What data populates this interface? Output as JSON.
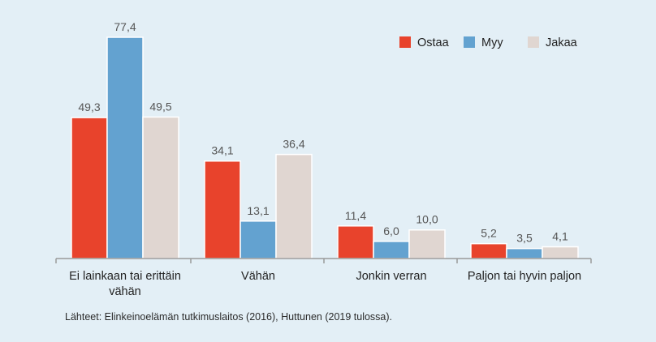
{
  "source_note": "Lähteet: Elinkeinoelämän tutkimuslaitos (2016), Huttunen (2019 tulossa).",
  "colors": {
    "background": "#e3eff6",
    "axis": "#9a9a9a",
    "value_label": "#555555",
    "tick_label": "#222222"
  },
  "chart_data": {
    "type": "bar",
    "categories": [
      [
        "Ei lainkaan tai erittäin",
        "vähän"
      ],
      [
        "Vähän"
      ],
      [
        "Jonkin verran"
      ],
      [
        "Paljon tai hyvin paljon"
      ]
    ],
    "series": [
      {
        "name": "Ostaa",
        "color": "#e8432c",
        "values": [
          49.3,
          34.1,
          11.4,
          5.2
        ],
        "labels": [
          "49,3",
          "34,1",
          "11,4",
          "5,2"
        ]
      },
      {
        "name": "Myy",
        "color": "#63a2d0",
        "values": [
          77.4,
          13.1,
          6.0,
          3.5
        ],
        "labels": [
          "77,4",
          "13,1",
          "6,0",
          "3,5"
        ]
      },
      {
        "name": "Jakaa",
        "color": "#e0d6d1",
        "values": [
          49.5,
          36.4,
          10.0,
          4.1
        ],
        "labels": [
          "49,5",
          "36,4",
          "10,0",
          "4,1"
        ]
      }
    ],
    "ylim": [
      0,
      77.4
    ],
    "grid": false,
    "legend_position": "top-right",
    "title": "",
    "xlabel": "",
    "ylabel": ""
  }
}
